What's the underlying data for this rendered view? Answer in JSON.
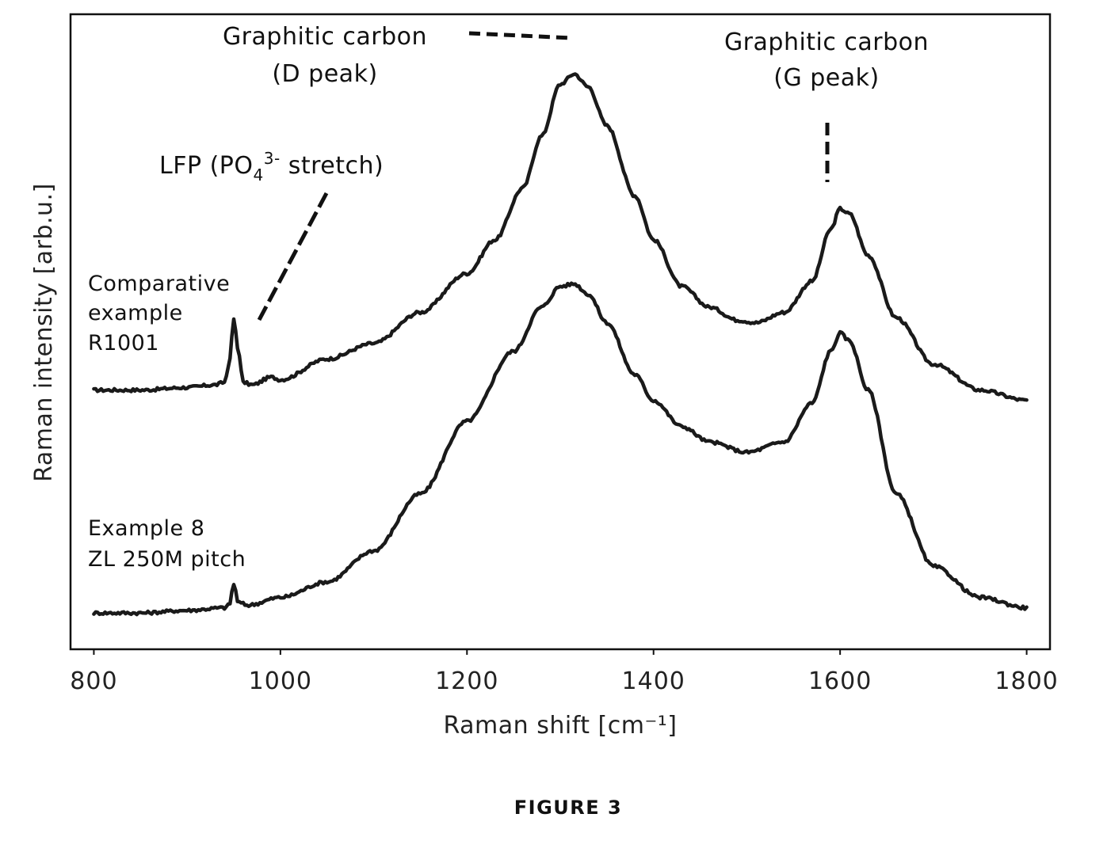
{
  "chart_data": {
    "type": "line",
    "xlabel": "Raman shift [cm⁻¹]",
    "ylabel": "Raman intensity [arb.u.]",
    "xlim": [
      775,
      1825
    ],
    "ylim": [
      -0.1,
      2.35
    ],
    "x_ticks": [
      800,
      1000,
      1200,
      1400,
      1600,
      1800
    ],
    "x_tick_labels": [
      "800",
      "1000",
      "1200",
      "1400",
      "1600",
      "1800"
    ],
    "y_ticks_labeled": false,
    "grid": false,
    "series": [
      {
        "name": "Comparative example R1001",
        "label_lines": [
          "Comparative",
          "example",
          "R1001"
        ],
        "points": [
          [
            800,
            0.9
          ],
          [
            850,
            0.9
          ],
          [
            900,
            0.91
          ],
          [
            930,
            0.92
          ],
          [
            940,
            0.93
          ],
          [
            945,
            1.0
          ],
          [
            950,
            1.17
          ],
          [
            955,
            1.05
          ],
          [
            960,
            0.93
          ],
          [
            970,
            0.92
          ],
          [
            990,
            0.95
          ],
          [
            1000,
            0.94
          ],
          [
            1050,
            1.02
          ],
          [
            1100,
            1.08
          ],
          [
            1150,
            1.2
          ],
          [
            1200,
            1.35
          ],
          [
            1230,
            1.48
          ],
          [
            1260,
            1.68
          ],
          [
            1280,
            1.88
          ],
          [
            1300,
            2.08
          ],
          [
            1315,
            2.12
          ],
          [
            1330,
            2.07
          ],
          [
            1350,
            1.92
          ],
          [
            1380,
            1.65
          ],
          [
            1400,
            1.48
          ],
          [
            1430,
            1.3
          ],
          [
            1460,
            1.22
          ],
          [
            1490,
            1.17
          ],
          [
            1510,
            1.16
          ],
          [
            1540,
            1.2
          ],
          [
            1570,
            1.32
          ],
          [
            1590,
            1.52
          ],
          [
            1600,
            1.6
          ],
          [
            1610,
            1.58
          ],
          [
            1630,
            1.42
          ],
          [
            1660,
            1.18
          ],
          [
            1700,
            1.0
          ],
          [
            1750,
            0.9
          ],
          [
            1800,
            0.86
          ]
        ]
      },
      {
        "name": "Example 8 ZL 250M pitch",
        "label_lines": [
          "Example 8",
          "ZL 250M pitch"
        ],
        "points": [
          [
            800,
            0.04
          ],
          [
            850,
            0.04
          ],
          [
            900,
            0.05
          ],
          [
            940,
            0.06
          ],
          [
            945,
            0.07
          ],
          [
            950,
            0.15
          ],
          [
            955,
            0.08
          ],
          [
            965,
            0.07
          ],
          [
            1000,
            0.1
          ],
          [
            1050,
            0.16
          ],
          [
            1100,
            0.28
          ],
          [
            1150,
            0.5
          ],
          [
            1200,
            0.78
          ],
          [
            1250,
            1.05
          ],
          [
            1280,
            1.22
          ],
          [
            1300,
            1.3
          ],
          [
            1315,
            1.31
          ],
          [
            1330,
            1.27
          ],
          [
            1350,
            1.16
          ],
          [
            1380,
            0.96
          ],
          [
            1400,
            0.86
          ],
          [
            1430,
            0.76
          ],
          [
            1460,
            0.7
          ],
          [
            1500,
            0.66
          ],
          [
            1540,
            0.7
          ],
          [
            1570,
            0.85
          ],
          [
            1590,
            1.05
          ],
          [
            1600,
            1.12
          ],
          [
            1610,
            1.09
          ],
          [
            1630,
            0.9
          ],
          [
            1660,
            0.5
          ],
          [
            1700,
            0.22
          ],
          [
            1750,
            0.1
          ],
          [
            1800,
            0.06
          ]
        ]
      }
    ],
    "annotations": [
      {
        "id": "d_peak",
        "lines": [
          "Graphitic carbon",
          "(D peak)"
        ]
      },
      {
        "id": "g_peak",
        "lines": [
          "Graphitic carbon",
          "(G peak)"
        ]
      },
      {
        "id": "lfp",
        "text_prefix": "LFP (PO",
        "subscript": "4",
        "superscript": "3-",
        "text_suffix": " stretch)"
      }
    ]
  },
  "figure_caption": "FIGURE 3"
}
